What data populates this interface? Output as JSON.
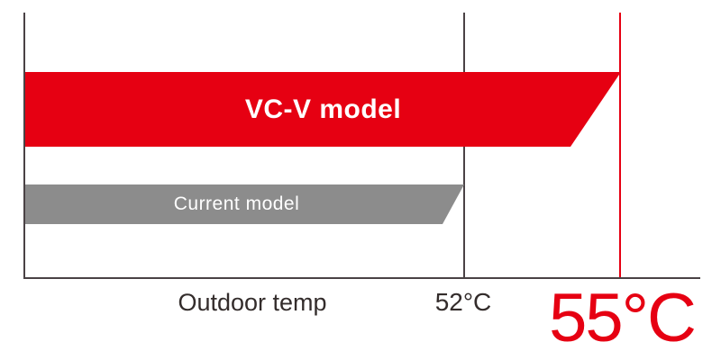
{
  "chart_data": {
    "type": "bar",
    "orientation": "horizontal",
    "title": "",
    "xlabel": "Outdoor temp",
    "unit": "°C",
    "categories": [
      "VC-V model",
      "Current model"
    ],
    "values": [
      55,
      52
    ],
    "series": [
      {
        "name": "VC-V model",
        "value": 55,
        "bar_color": "#e60012",
        "label_color": "#ffffff"
      },
      {
        "name": "Current model",
        "value": 52,
        "bar_color": "#8c8c8c",
        "label_color": "#ffffff"
      }
    ],
    "x_ticks": [
      "52°C",
      "55°C"
    ],
    "reference_lines": [
      {
        "label": "52°C",
        "value": 52,
        "color": "#4a4245"
      },
      {
        "label": "55°C",
        "value": 55,
        "color": "#e60012",
        "emphasized": true
      }
    ],
    "bar_shape": "right-edge-slanted",
    "legend": "none",
    "grid": "off"
  },
  "colors": {
    "accent_red": "#e60012",
    "bar_gray": "#8c8c8c",
    "axis_line": "#4a4245",
    "text_dark": "#332c2b",
    "bar_text": "#ffffff",
    "background": "#ffffff"
  }
}
